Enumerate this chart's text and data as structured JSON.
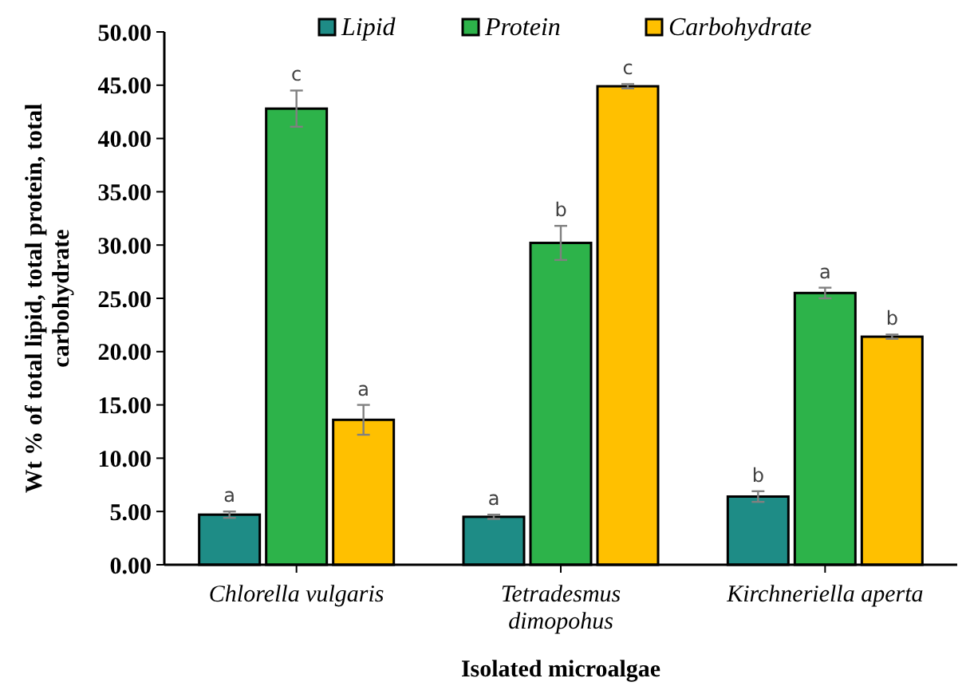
{
  "chart_data": {
    "type": "bar",
    "xlabel": "Isolated microalgae",
    "ylabel": "Wt % of total lipid, total protein, total carbohydrate",
    "categories": [
      "Chlorella vulgaris",
      "Tetradesmus dimopohus",
      "Kirchneriella aperta"
    ],
    "series": [
      {
        "name": "Lipid",
        "color": "#1e8c86",
        "values": [
          4.7,
          4.5,
          6.4
        ],
        "errors": [
          0.3,
          0.2,
          0.5
        ],
        "value_labels": [
          "a",
          "a",
          "b"
        ]
      },
      {
        "name": "Protein",
        "color": "#2db34a",
        "values": [
          42.8,
          30.2,
          25.5
        ],
        "errors": [
          1.7,
          1.6,
          0.5
        ],
        "value_labels": [
          "c",
          "b",
          "a"
        ]
      },
      {
        "name": "Carbohydrate",
        "color": "#ffc000",
        "values": [
          13.6,
          44.9,
          21.4
        ],
        "errors": [
          1.4,
          0.2,
          0.2
        ],
        "value_labels": [
          "a",
          "c",
          "b"
        ]
      }
    ],
    "ylim": [
      0,
      50
    ],
    "yticks": [
      {
        "value": 0,
        "label": "0.00"
      },
      {
        "value": 5,
        "label": "5.00"
      },
      {
        "value": 10,
        "label": "10.00"
      },
      {
        "value": 15,
        "label": "15.00"
      },
      {
        "value": 20,
        "label": "20.00"
      },
      {
        "value": 25,
        "label": "25.00"
      },
      {
        "value": 30,
        "label": "30.00"
      },
      {
        "value": 35,
        "label": "35.00"
      },
      {
        "value": 40,
        "label": "40.00"
      },
      {
        "value": 45,
        "label": "45.00"
      },
      {
        "value": 50,
        "label": "50.00"
      }
    ],
    "grid": false,
    "legend": "top"
  }
}
